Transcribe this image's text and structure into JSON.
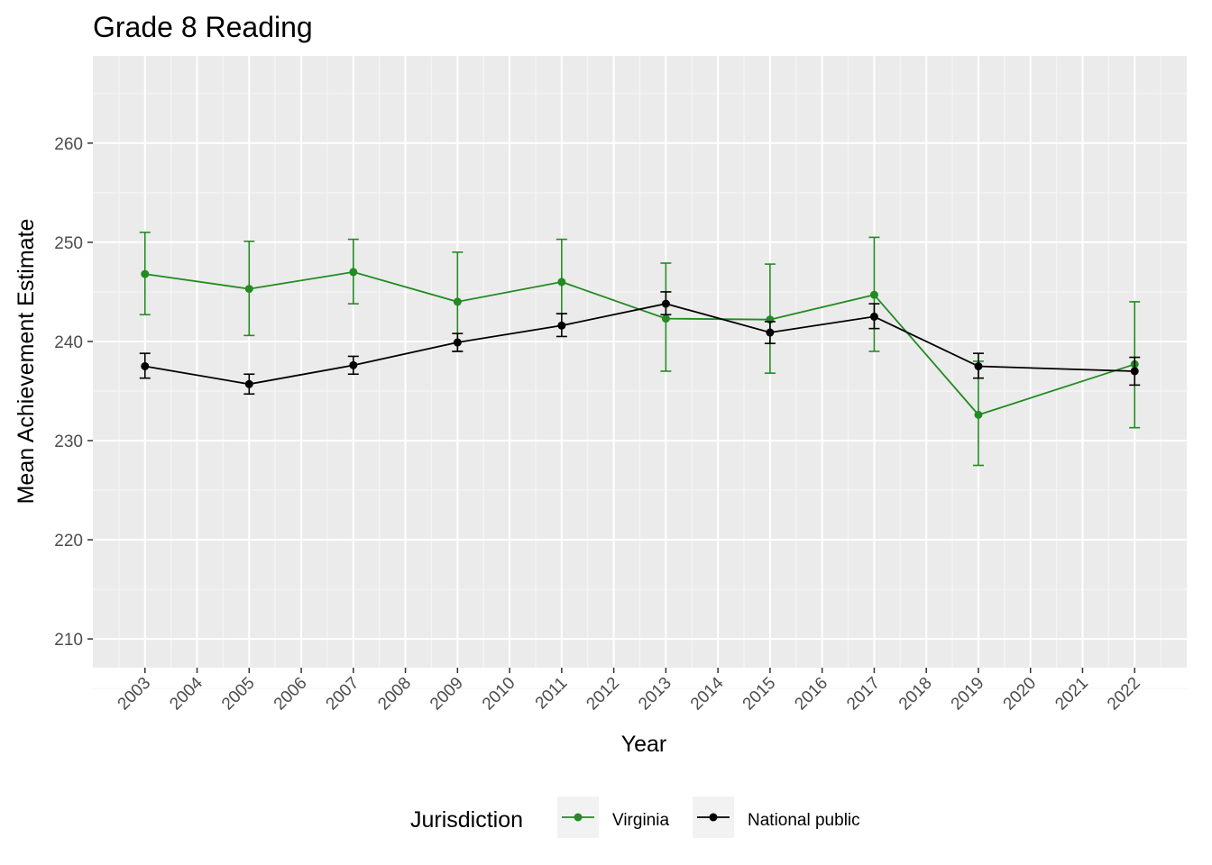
{
  "chart_data": {
    "type": "line",
    "title": "Grade 8 Reading",
    "xlabel": "Year",
    "ylabel": "Mean Achievement Estimate",
    "x_ticks": [
      "2003",
      "2004",
      "2005",
      "2006",
      "2007",
      "2008",
      "2009",
      "2010",
      "2011",
      "2012",
      "2013",
      "2014",
      "2015",
      "2016",
      "2017",
      "2018",
      "2019",
      "2020",
      "2021",
      "2022"
    ],
    "y_ticks": [
      210,
      220,
      230,
      240,
      250,
      260
    ],
    "xlim": [
      2002.0,
      2023.0
    ],
    "ylim": [
      207.1,
      268.8
    ],
    "grid": true,
    "legend_position": "bottom",
    "legend_title": "Jurisdiction",
    "series": [
      {
        "name": "Virginia",
        "color": "#228B22",
        "points": [
          {
            "x": 2003,
            "y": 246.8,
            "lo": 242.7,
            "hi": 251.0
          },
          {
            "x": 2005,
            "y": 245.3,
            "lo": 240.6,
            "hi": 250.1
          },
          {
            "x": 2007,
            "y": 247.0,
            "lo": 243.8,
            "hi": 250.3
          },
          {
            "x": 2009,
            "y": 244.0,
            "lo": 239.0,
            "hi": 249.0
          },
          {
            "x": 2011,
            "y": 246.0,
            "lo": 242.8,
            "hi": 250.3
          },
          {
            "x": 2013,
            "y": 242.3,
            "lo": 237.0,
            "hi": 247.9
          },
          {
            "x": 2015,
            "y": 242.2,
            "lo": 236.8,
            "hi": 247.8
          },
          {
            "x": 2017,
            "y": 244.7,
            "lo": 239.0,
            "hi": 250.5
          },
          {
            "x": 2019,
            "y": 232.6,
            "lo": 227.5,
            "hi": 238.0
          },
          {
            "x": 2022,
            "y": 237.7,
            "lo": 231.3,
            "hi": 244.0
          }
        ]
      },
      {
        "name": "National public",
        "color": "#000000",
        "points": [
          {
            "x": 2003,
            "y": 237.5,
            "lo": 236.3,
            "hi": 238.8
          },
          {
            "x": 2005,
            "y": 235.7,
            "lo": 234.7,
            "hi": 236.7
          },
          {
            "x": 2007,
            "y": 237.6,
            "lo": 236.7,
            "hi": 238.5
          },
          {
            "x": 2009,
            "y": 239.9,
            "lo": 239.0,
            "hi": 240.8
          },
          {
            "x": 2011,
            "y": 241.6,
            "lo": 240.5,
            "hi": 242.8
          },
          {
            "x": 2013,
            "y": 243.8,
            "lo": 242.7,
            "hi": 245.0
          },
          {
            "x": 2015,
            "y": 240.9,
            "lo": 239.8,
            "hi": 242.0
          },
          {
            "x": 2017,
            "y": 242.5,
            "lo": 241.3,
            "hi": 243.8
          },
          {
            "x": 2019,
            "y": 237.5,
            "lo": 236.3,
            "hi": 238.8
          },
          {
            "x": 2022,
            "y": 237.0,
            "lo": 235.6,
            "hi": 238.4
          }
        ]
      }
    ]
  }
}
